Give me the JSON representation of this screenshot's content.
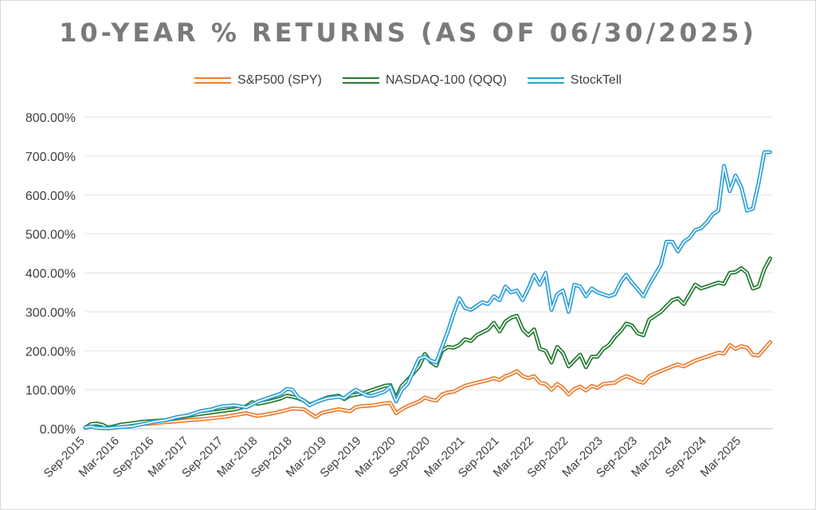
{
  "chart_data": {
    "type": "line",
    "title": "10-YEAR % RETURNS (AS OF 06/30/2025)",
    "xlabel": "",
    "ylabel": "",
    "ylim": [
      0,
      800
    ],
    "y_ticks": [
      0,
      100,
      200,
      300,
      400,
      500,
      600,
      700,
      800
    ],
    "y_tick_labels": [
      "0.00%",
      "100.00%",
      "200.00%",
      "300.00%",
      "400.00%",
      "500.00%",
      "600.00%",
      "700.00%",
      "800.00%"
    ],
    "x_tick_labels": [
      "Sep-2015",
      "Mar-2016",
      "Sep-2016",
      "Mar-2017",
      "Sep-2017",
      "Mar-2018",
      "Sep-2018",
      "Mar-2019",
      "Sep-2019",
      "Mar-2020",
      "Sep-2020",
      "Mar-2021",
      "Sep-2021",
      "Mar-2022",
      "Sep-2022",
      "Mar-2023",
      "Sep-2023",
      "Mar-2024",
      "Sep-2024",
      "Mar-2025"
    ],
    "x_tick_month_index": [
      0,
      6,
      12,
      18,
      24,
      30,
      36,
      42,
      48,
      54,
      60,
      66,
      72,
      78,
      84,
      90,
      96,
      102,
      108,
      114
    ],
    "x_range_months": [
      0,
      118
    ],
    "grid": "horizontal",
    "legend_position": "top",
    "series": [
      {
        "name": "S&P500 (SPY)",
        "color": "#ed7d31",
        "points": [
          [
            0,
            2
          ],
          [
            2,
            8
          ],
          [
            4,
            4
          ],
          [
            6,
            7
          ],
          [
            8,
            10
          ],
          [
            10,
            12
          ],
          [
            12,
            14
          ],
          [
            14,
            17
          ],
          [
            16,
            19
          ],
          [
            18,
            22
          ],
          [
            20,
            24
          ],
          [
            22,
            27
          ],
          [
            24,
            30
          ],
          [
            26,
            35
          ],
          [
            28,
            40
          ],
          [
            29,
            36
          ],
          [
            30,
            33
          ],
          [
            32,
            38
          ],
          [
            34,
            44
          ],
          [
            36,
            52
          ],
          [
            38,
            50
          ],
          [
            39,
            40
          ],
          [
            40,
            30
          ],
          [
            41,
            40
          ],
          [
            42,
            44
          ],
          [
            44,
            50
          ],
          [
            46,
            45
          ],
          [
            47,
            55
          ],
          [
            48,
            58
          ],
          [
            50,
            60
          ],
          [
            52,
            65
          ],
          [
            53,
            66
          ],
          [
            54,
            40
          ],
          [
            55,
            50
          ],
          [
            56,
            58
          ],
          [
            58,
            70
          ],
          [
            59,
            80
          ],
          [
            60,
            75
          ],
          [
            61,
            72
          ],
          [
            62,
            88
          ],
          [
            63,
            93
          ],
          [
            64,
            95
          ],
          [
            66,
            110
          ],
          [
            68,
            118
          ],
          [
            70,
            125
          ],
          [
            71,
            130
          ],
          [
            72,
            125
          ],
          [
            73,
            135
          ],
          [
            74,
            140
          ],
          [
            75,
            148
          ],
          [
            76,
            135
          ],
          [
            77,
            130
          ],
          [
            78,
            135
          ],
          [
            79,
            118
          ],
          [
            80,
            115
          ],
          [
            81,
            100
          ],
          [
            82,
            115
          ],
          [
            83,
            105
          ],
          [
            84,
            88
          ],
          [
            85,
            102
          ],
          [
            86,
            108
          ],
          [
            87,
            98
          ],
          [
            88,
            110
          ],
          [
            89,
            105
          ],
          [
            90,
            115
          ],
          [
            92,
            118
          ],
          [
            93,
            128
          ],
          [
            94,
            135
          ],
          [
            95,
            130
          ],
          [
            96,
            122
          ],
          [
            97,
            118
          ],
          [
            98,
            135
          ],
          [
            100,
            148
          ],
          [
            102,
            160
          ],
          [
            103,
            165
          ],
          [
            104,
            160
          ],
          [
            106,
            175
          ],
          [
            108,
            185
          ],
          [
            110,
            195
          ],
          [
            111,
            193
          ],
          [
            112,
            215
          ],
          [
            113,
            205
          ],
          [
            114,
            212
          ],
          [
            115,
            208
          ],
          [
            116,
            190
          ],
          [
            117,
            188
          ],
          [
            118,
            205
          ],
          [
            119,
            222
          ]
        ]
      },
      {
        "name": "NASDAQ-100 (QQQ)",
        "color": "#217a2f",
        "points": [
          [
            0,
            3
          ],
          [
            1,
            12
          ],
          [
            2,
            13
          ],
          [
            3,
            10
          ],
          [
            4,
            2
          ],
          [
            5,
            6
          ],
          [
            6,
            10
          ],
          [
            8,
            14
          ],
          [
            10,
            18
          ],
          [
            12,
            20
          ],
          [
            14,
            22
          ],
          [
            16,
            28
          ],
          [
            18,
            33
          ],
          [
            20,
            38
          ],
          [
            22,
            42
          ],
          [
            24,
            46
          ],
          [
            26,
            50
          ],
          [
            28,
            58
          ],
          [
            29,
            68
          ],
          [
            30,
            64
          ],
          [
            32,
            70
          ],
          [
            34,
            78
          ],
          [
            35,
            85
          ],
          [
            36,
            82
          ],
          [
            37,
            78
          ],
          [
            38,
            72
          ],
          [
            39,
            62
          ],
          [
            40,
            68
          ],
          [
            42,
            80
          ],
          [
            44,
            85
          ],
          [
            45,
            76
          ],
          [
            46,
            85
          ],
          [
            48,
            90
          ],
          [
            50,
            100
          ],
          [
            52,
            110
          ],
          [
            53,
            112
          ],
          [
            54,
            78
          ],
          [
            55,
            110
          ],
          [
            56,
            125
          ],
          [
            58,
            160
          ],
          [
            59,
            192
          ],
          [
            60,
            172
          ],
          [
            61,
            162
          ],
          [
            62,
            200
          ],
          [
            63,
            210
          ],
          [
            64,
            208
          ],
          [
            65,
            215
          ],
          [
            66,
            230
          ],
          [
            67,
            225
          ],
          [
            68,
            240
          ],
          [
            70,
            255
          ],
          [
            71,
            272
          ],
          [
            72,
            250
          ],
          [
            73,
            275
          ],
          [
            74,
            285
          ],
          [
            75,
            290
          ],
          [
            76,
            255
          ],
          [
            77,
            240
          ],
          [
            78,
            255
          ],
          [
            79,
            205
          ],
          [
            80,
            200
          ],
          [
            81,
            170
          ],
          [
            82,
            210
          ],
          [
            83,
            195
          ],
          [
            84,
            160
          ],
          [
            85,
            175
          ],
          [
            86,
            190
          ],
          [
            87,
            158
          ],
          [
            88,
            185
          ],
          [
            89,
            185
          ],
          [
            90,
            205
          ],
          [
            91,
            215
          ],
          [
            92,
            235
          ],
          [
            93,
            250
          ],
          [
            94,
            270
          ],
          [
            95,
            265
          ],
          [
            96,
            245
          ],
          [
            97,
            240
          ],
          [
            98,
            280
          ],
          [
            100,
            300
          ],
          [
            102,
            330
          ],
          [
            103,
            335
          ],
          [
            104,
            320
          ],
          [
            106,
            370
          ],
          [
            107,
            360
          ],
          [
            108,
            365
          ],
          [
            110,
            375
          ],
          [
            111,
            372
          ],
          [
            112,
            400
          ],
          [
            113,
            402
          ],
          [
            114,
            412
          ],
          [
            115,
            400
          ],
          [
            116,
            360
          ],
          [
            117,
            365
          ],
          [
            118,
            410
          ],
          [
            119,
            437
          ]
        ]
      },
      {
        "name": "StockTell",
        "color": "#2ea0d6",
        "points": [
          [
            0,
            3
          ],
          [
            1,
            6
          ],
          [
            2,
            2
          ],
          [
            4,
            1
          ],
          [
            6,
            4
          ],
          [
            8,
            6
          ],
          [
            10,
            12
          ],
          [
            12,
            18
          ],
          [
            14,
            22
          ],
          [
            16,
            30
          ],
          [
            18,
            35
          ],
          [
            20,
            45
          ],
          [
            22,
            50
          ],
          [
            23,
            55
          ],
          [
            24,
            58
          ],
          [
            26,
            60
          ],
          [
            28,
            55
          ],
          [
            29,
            62
          ],
          [
            30,
            70
          ],
          [
            32,
            80
          ],
          [
            34,
            90
          ],
          [
            35,
            102
          ],
          [
            36,
            100
          ],
          [
            37,
            80
          ],
          [
            38,
            72
          ],
          [
            39,
            60
          ],
          [
            40,
            68
          ],
          [
            42,
            78
          ],
          [
            44,
            82
          ],
          [
            45,
            78
          ],
          [
            46,
            90
          ],
          [
            47,
            100
          ],
          [
            48,
            92
          ],
          [
            49,
            85
          ],
          [
            50,
            85
          ],
          [
            52,
            95
          ],
          [
            53,
            108
          ],
          [
            54,
            70
          ],
          [
            55,
            100
          ],
          [
            56,
            115
          ],
          [
            58,
            180
          ],
          [
            59,
            185
          ],
          [
            60,
            175
          ],
          [
            61,
            170
          ],
          [
            62,
            210
          ],
          [
            63,
            250
          ],
          [
            64,
            295
          ],
          [
            65,
            335
          ],
          [
            66,
            310
          ],
          [
            67,
            305
          ],
          [
            68,
            315
          ],
          [
            69,
            325
          ],
          [
            70,
            320
          ],
          [
            71,
            340
          ],
          [
            72,
            330
          ],
          [
            73,
            365
          ],
          [
            74,
            350
          ],
          [
            75,
            355
          ],
          [
            76,
            330
          ],
          [
            77,
            360
          ],
          [
            78,
            395
          ],
          [
            79,
            370
          ],
          [
            80,
            400
          ],
          [
            81,
            305
          ],
          [
            82,
            345
          ],
          [
            83,
            355
          ],
          [
            84,
            300
          ],
          [
            85,
            370
          ],
          [
            86,
            365
          ],
          [
            87,
            340
          ],
          [
            88,
            360
          ],
          [
            89,
            350
          ],
          [
            90,
            345
          ],
          [
            91,
            340
          ],
          [
            92,
            345
          ],
          [
            93,
            375
          ],
          [
            94,
            395
          ],
          [
            95,
            375
          ],
          [
            96,
            358
          ],
          [
            97,
            340
          ],
          [
            98,
            370
          ],
          [
            100,
            420
          ],
          [
            101,
            480
          ],
          [
            102,
            480
          ],
          [
            103,
            455
          ],
          [
            104,
            480
          ],
          [
            105,
            490
          ],
          [
            106,
            510
          ],
          [
            107,
            515
          ],
          [
            108,
            530
          ],
          [
            109,
            550
          ],
          [
            110,
            560
          ],
          [
            111,
            675
          ],
          [
            112,
            610
          ],
          [
            113,
            650
          ],
          [
            114,
            620
          ],
          [
            115,
            560
          ],
          [
            116,
            565
          ],
          [
            117,
            630
          ],
          [
            118,
            710
          ],
          [
            119,
            710
          ]
        ]
      }
    ]
  }
}
